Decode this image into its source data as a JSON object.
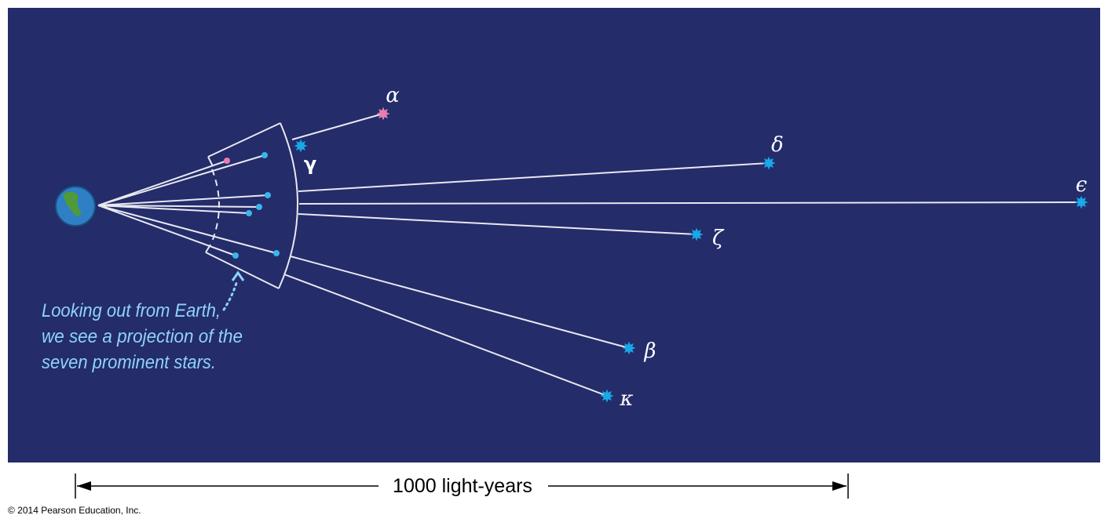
{
  "stars": [
    {
      "label": "α"
    },
    {
      "label": "γ"
    },
    {
      "label": "δ"
    },
    {
      "label": "ϵ"
    },
    {
      "label": "ζ"
    },
    {
      "label": "β"
    },
    {
      "label": "κ"
    }
  ],
  "caption": [
    "Looking out from Earth,",
    "we see a projection of the",
    "seven prominent stars."
  ],
  "scale_label": "1000 light-years",
  "copyright": "© 2014 Pearson Education, Inc."
}
